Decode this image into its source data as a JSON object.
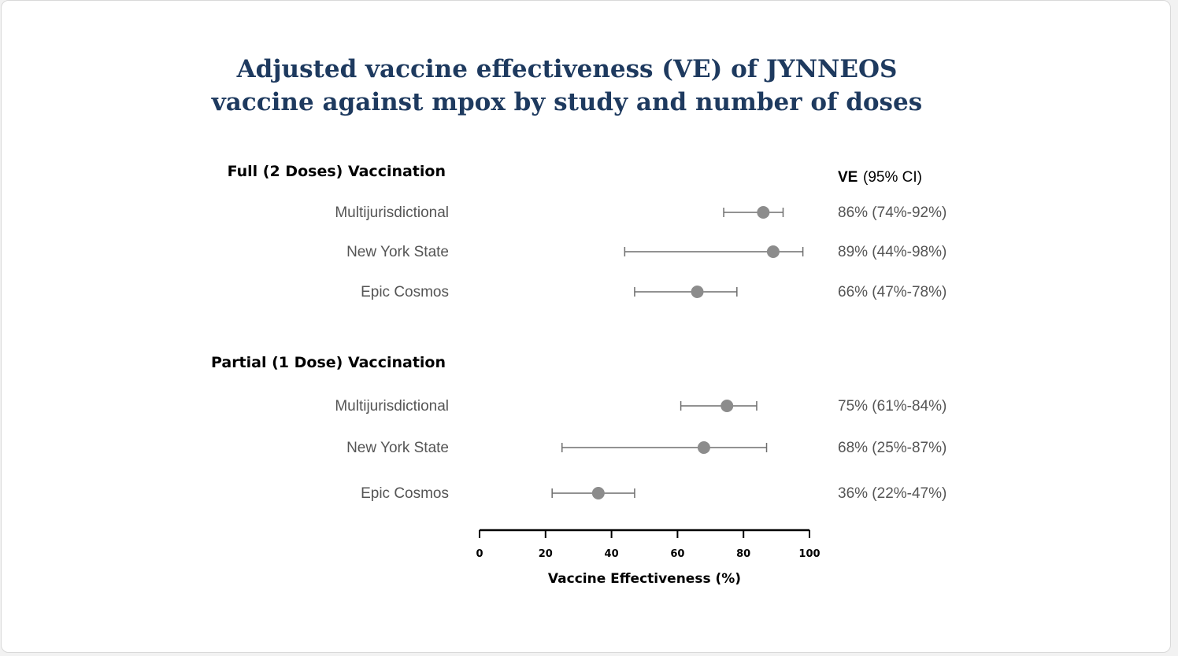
{
  "chart_data": {
    "type": "forest",
    "title_lines": [
      "Adjusted vaccine effectiveness (VE) of JYNNEOS",
      "vaccine against mpox by study and number of doses"
    ],
    "ve_header": {
      "bold": "VE",
      "rest": "(95% CI)"
    },
    "xlabel": "Vaccine Effectiveness (%)",
    "xlim": [
      0,
      100
    ],
    "xticks": [
      0,
      20,
      40,
      60,
      80,
      100
    ],
    "point_color": "#8c8c8c",
    "groups": [
      {
        "name": "Full (2 Doses) Vaccination",
        "rows": [
          {
            "study": "Multijurisdictional",
            "ve": 86,
            "low": 74,
            "high": 92,
            "label": "86% (74%-92%)"
          },
          {
            "study": "New York State",
            "ve": 89,
            "low": 44,
            "high": 98,
            "label": "89% (44%-98%)"
          },
          {
            "study": "Epic Cosmos",
            "ve": 66,
            "low": 47,
            "high": 78,
            "label": "66% (47%-78%)"
          }
        ]
      },
      {
        "name": "Partial (1 Dose) Vaccination",
        "rows": [
          {
            "study": "Multijurisdictional",
            "ve": 75,
            "low": 61,
            "high": 84,
            "label": "75% (61%-84%)"
          },
          {
            "study": "New York State",
            "ve": 68,
            "low": 25,
            "high": 87,
            "label": "68% (25%-87%)"
          },
          {
            "study": "Epic Cosmos",
            "ve": 36,
            "low": 22,
            "high": 47,
            "label": "36% (22%-47%)"
          }
        ]
      }
    ]
  }
}
